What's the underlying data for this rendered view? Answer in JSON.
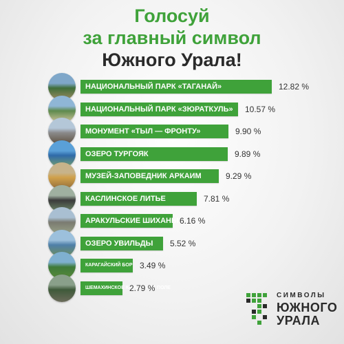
{
  "title": {
    "line1": "Голосуй",
    "line2": "за главный символ",
    "line3": "Южного Урала!"
  },
  "logo": {
    "line1": "СИМВОЛЫ",
    "line2": "ЮЖНОГО",
    "line3": "УРАЛА"
  },
  "colors": {
    "accent": "#3fa23a",
    "title_dark": "#2a2a2a",
    "value_text": "#333333",
    "label_text": "#ffffff"
  },
  "chart_data": {
    "type": "bar",
    "orientation": "horizontal",
    "unit": "%",
    "categories": [
      "НАЦИОНАЛЬНЫЙ ПАРК «ТАГАНАЙ»",
      "НАЦИОНАЛЬНЫЙ ПАРК «ЗЮРАТКУЛЬ»",
      "МОНУМЕНТ «ТЫЛ — ФРОНТУ»",
      "ОЗЕРО ТУРГОЯК",
      "МУЗЕЙ-ЗАПОВЕДНИК АРКАИМ",
      "КАСЛИНСКОЕ ЛИТЬЕ",
      "АРАКУЛЬСКИЕ ШИХАНЫ",
      "ОЗЕРО УВИЛЬДЫ",
      "КАРАГАЙСКИЙ БОР",
      "ШЕМАХИНСКОЕ КАРСТОВОЕ ПОЛЕ"
    ],
    "values": [
      12.82,
      10.57,
      9.9,
      9.89,
      9.29,
      7.81,
      6.16,
      5.52,
      3.49,
      2.79
    ],
    "value_labels": [
      "12.82 %",
      "10.57 %",
      "9.90 %",
      "9.89 %",
      "9.29 %",
      "7.81 %",
      "6.16 %",
      "5.52 %",
      "3.49 %",
      "2.79 %"
    ],
    "thumbnails": [
      "mountain-forest-photo",
      "lake-rocks-photo",
      "monument-statue-photo",
      "blue-lake-photo",
      "steppe-hills-photo",
      "cast-iron-horse-photo",
      "rocky-ridge-photo",
      "lake-shore-photo",
      "pine-forest-photo",
      "karst-rock-photo"
    ],
    "xlim": [
      0,
      12.82
    ],
    "grid": false,
    "legend": "none"
  }
}
